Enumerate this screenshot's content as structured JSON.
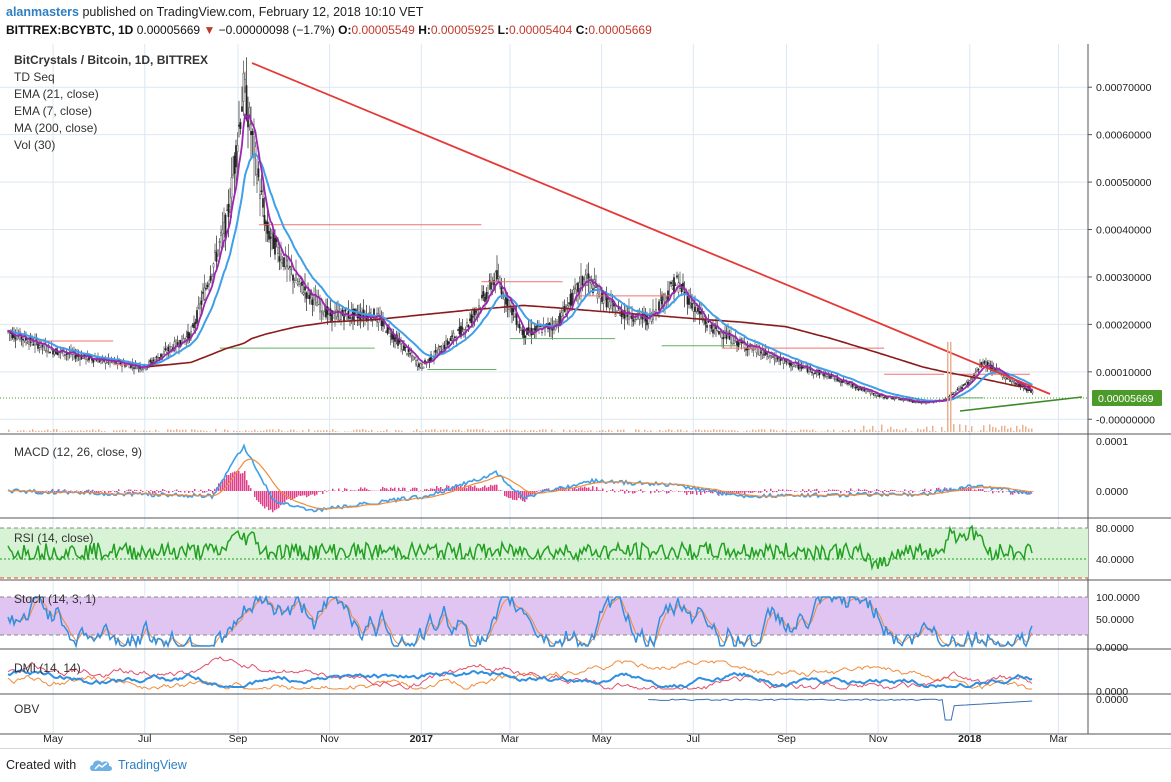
{
  "header": {
    "author": "alanmasters",
    "published_text": "published on TradingView.com, February 12, 2018 10:10 VET",
    "symbol": "BITTREX:BCYBTC, 1D",
    "last_price": "0.00005669",
    "change": "−0.00000098 (−1.7%)",
    "open_label": "O:",
    "open": "0.00005549",
    "high_label": "H:",
    "high": "0.00005925",
    "low_label": "L:",
    "low": "0.00005404",
    "close_label": "C:",
    "close": "0.00005669"
  },
  "legend": {
    "title": "BitCrystals / Bitcoin, 1D, BITTREX",
    "studies": [
      "TD Seq",
      "EMA (21, close)",
      "EMA (7, close)",
      "MA (200, close)",
      "Vol (30)"
    ]
  },
  "panes": {
    "macd_label": "MACD (12, 26, close, 9)",
    "rsi_label": "RSI (14, close)",
    "stoch_label": "Stoch (14, 3, 1)",
    "dmi_label": "DMI (14, 14)",
    "obv_label": "OBV"
  },
  "chart_data": {
    "type": "line",
    "series_note": "Daily candles (price in BTC)",
    "x": [
      "2016-04-01",
      "2016-05-01",
      "2016-06-01",
      "2016-07-01",
      "2016-08-01",
      "2016-08-25",
      "2016-09-05",
      "2016-09-10",
      "2016-09-20",
      "2016-10-10",
      "2016-11-01",
      "2016-12-01",
      "2017-01-01",
      "2017-02-01",
      "2017-02-20",
      "2017-03-10",
      "2017-04-01",
      "2017-04-20",
      "2017-05-10",
      "2017-06-01",
      "2017-06-20",
      "2017-07-10",
      "2017-08-01",
      "2017-09-01",
      "2017-10-01",
      "2017-11-01",
      "2017-12-01",
      "2017-12-15",
      "2018-01-01",
      "2018-01-10",
      "2018-02-01",
      "2018-02-12"
    ],
    "series": [
      {
        "name": "Price",
        "values": [
          0.000185,
          0.000145,
          0.000125,
          0.00011,
          0.00018,
          0.00042,
          0.0007,
          0.0006,
          0.0004,
          0.00029,
          0.00022,
          0.00022,
          0.00011,
          0.0002,
          0.0003,
          0.00018,
          0.0002,
          0.0003,
          0.00023,
          0.00021,
          0.00029,
          0.0002,
          0.00016,
          0.00012,
          9e-05,
          5e-05,
          3.5e-05,
          4e-05,
          8e-05,
          0.00012,
          7.5e-05,
          5.7e-05
        ]
      },
      {
        "name": "MA (200, close)",
        "values": [
          null,
          null,
          null,
          0.00011,
          0.00012,
          0.00015,
          0.00016,
          0.00017,
          0.00018,
          0.000195,
          0.000205,
          0.00021,
          0.00022,
          0.00023,
          0.000235,
          0.00024,
          0.000235,
          0.00023,
          0.000225,
          0.00022,
          0.000215,
          0.00021,
          0.000205,
          0.000195,
          0.00017,
          0.00014,
          0.00011,
          0.0001,
          9e-05,
          8.5e-05,
          7e-05,
          6.8e-05
        ]
      }
    ],
    "yaxis": {
      "ticks": [
        "0.00070000",
        "0.00060000",
        "0.00050000",
        "0.00040000",
        "0.00030000",
        "0.00020000",
        "0.00010000",
        "-0.00000000"
      ],
      "range": [
        -1e-05,
        0.00077
      ]
    },
    "xaxis": {
      "ticks": [
        "May",
        "Jul",
        "Sep",
        "Nov",
        "2017",
        "Mar",
        "May",
        "Jul",
        "Sep",
        "Nov",
        "2018",
        "Mar"
      ]
    },
    "price_badge": "0.00005669",
    "macd_ticks": [
      "0.0001",
      "0.0000"
    ],
    "rsi_ticks": [
      "80.0000",
      "40.0000"
    ],
    "stoch_ticks": [
      "100.0000",
      "50.0000",
      "0.0000"
    ],
    "dmi_ticks": [
      "0.0000"
    ],
    "obv_ticks": [
      "0.0000"
    ],
    "colors": {
      "ema21": "#3f9fe8",
      "ema7": "#9b27b0",
      "ma200": "#8b1a1a",
      "trendline": "#e53935",
      "support": "#3a8a2a",
      "rsi": "#22a022",
      "rsi_band": "#d8f2d6",
      "stoch_band": "#e0c4f2",
      "badge": "#4c9a2a"
    },
    "grid": true
  },
  "footer": {
    "created_with": "Created with",
    "brand": "TradingView"
  }
}
